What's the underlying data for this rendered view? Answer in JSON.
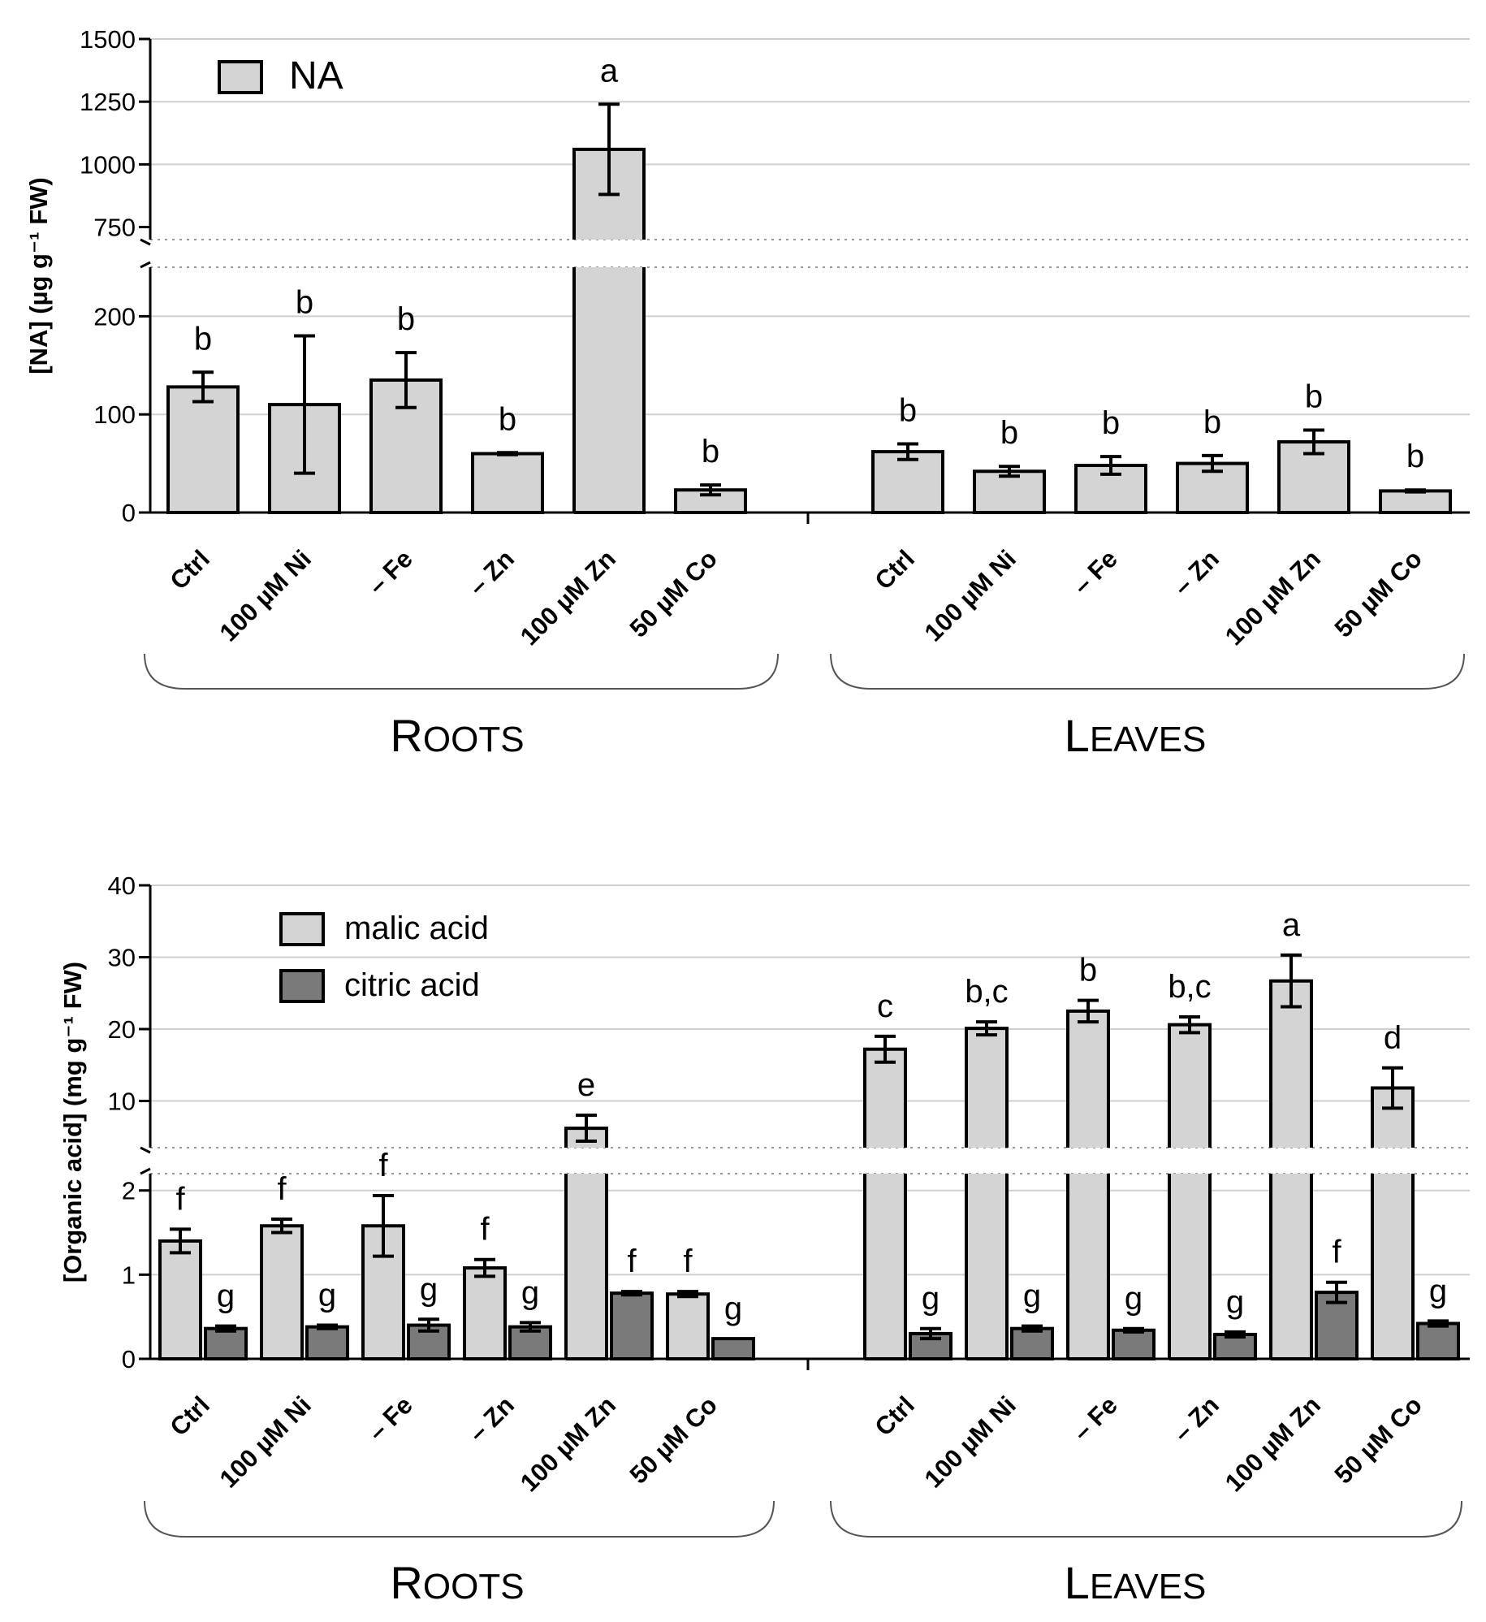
{
  "chart_data": [
    {
      "type": "bar",
      "ylabel": "[NA] (µg g⁻¹ FW)",
      "axis_break": {
        "lower_range": [
          0,
          250
        ],
        "upper_range": [
          700,
          1500
        ]
      },
      "yticks": [
        0,
        100,
        200,
        750,
        1000,
        1250,
        1500
      ],
      "ytick_labels": [
        "0",
        "100",
        "200",
        "750",
        "1000",
        "1250",
        "1500"
      ],
      "categories": [
        "Ctrl",
        "100 µM Ni",
        "– Fe",
        "– Zn",
        "100 µM Zn",
        "50 µM Co"
      ],
      "groups": [
        "Roots",
        "Leaves"
      ],
      "group_labels": [
        {
          "big1": "R",
          "small": "OOTS"
        },
        {
          "big1": "L",
          "small": "EAVES"
        }
      ],
      "legend": [
        {
          "name": "NA",
          "color": "#d4d4d4"
        }
      ],
      "series": [
        {
          "name": "NA",
          "color": "#d4d4d4",
          "values": [
            [
              128,
              110,
              135,
              60,
              1060,
              23
            ],
            [
              62,
              42,
              48,
              50,
              72,
              22
            ]
          ],
          "errors": [
            [
              15,
              70,
              28,
              1,
              180,
              5
            ],
            [
              8,
              5,
              9,
              8,
              12,
              1
            ]
          ],
          "letters": [
            [
              "b",
              "b",
              "b",
              "b",
              "a",
              "b"
            ],
            [
              "b",
              "b",
              "b",
              "b",
              "b",
              "b"
            ]
          ]
        }
      ]
    },
    {
      "type": "bar",
      "ylabel": "[Organic acid] (mg g⁻¹ FW)",
      "axis_break": {
        "lower_range": [
          0,
          2.2
        ],
        "upper_range": [
          3.5,
          40
        ]
      },
      "yticks": [
        0,
        1,
        2,
        10,
        20,
        30,
        40
      ],
      "ytick_labels": [
        "0",
        "1",
        "2",
        "10",
        "20",
        "30",
        "40"
      ],
      "categories": [
        "Ctrl",
        "100 µM Ni",
        "– Fe",
        "– Zn",
        "100 µM Zn",
        "50 µM Co"
      ],
      "groups": [
        "Roots",
        "Leaves"
      ],
      "group_labels": [
        {
          "big1": "R",
          "small": "OOTS"
        },
        {
          "big1": "L",
          "small": "EAVES"
        }
      ],
      "legend": [
        {
          "name": "malic acid",
          "color": "#d4d4d4"
        },
        {
          "name": "citric acid",
          "color": "#7a7a7a"
        }
      ],
      "series": [
        {
          "name": "malic acid",
          "color": "#d4d4d4",
          "values": [
            [
              1.4,
              1.58,
              1.58,
              1.08,
              6.2,
              0.77
            ],
            [
              17.2,
              20.1,
              22.5,
              20.6,
              26.7,
              11.8
            ]
          ],
          "errors": [
            [
              0.14,
              0.08,
              0.36,
              0.1,
              1.8,
              0.03
            ],
            [
              1.8,
              0.9,
              1.5,
              1.1,
              3.6,
              2.8
            ]
          ],
          "letters": [
            [
              "f",
              "f",
              "f",
              "f",
              "e",
              "f"
            ],
            [
              "c",
              "b,c",
              "b",
              "b,c",
              "a",
              "d"
            ]
          ]
        },
        {
          "name": "citric acid",
          "color": "#7a7a7a",
          "values": [
            [
              0.36,
              0.38,
              0.4,
              0.38,
              0.78,
              0.24
            ],
            [
              0.3,
              0.36,
              0.34,
              0.29,
              0.79,
              0.42
            ]
          ],
          "errors": [
            [
              0.03,
              0.02,
              0.07,
              0.05,
              0.02,
              0.0
            ],
            [
              0.06,
              0.03,
              0.02,
              0.03,
              0.12,
              0.03
            ]
          ],
          "letters": [
            [
              "g",
              "g",
              "g",
              "g",
              "f",
              "g"
            ],
            [
              "g",
              "g",
              "g",
              "g",
              "f",
              "g"
            ]
          ]
        }
      ]
    }
  ]
}
